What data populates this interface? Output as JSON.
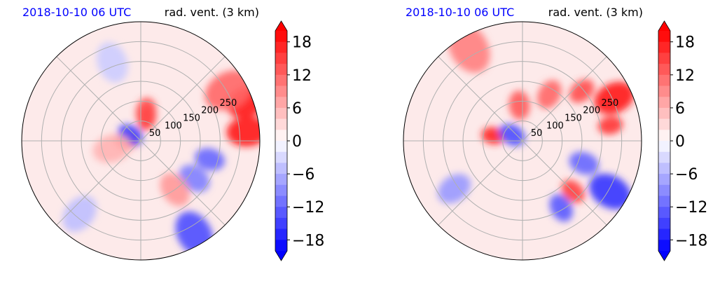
{
  "chart_data": [
    {
      "type": "heatmap",
      "title_left": "2018-10-10 06 UTC",
      "title_right": "rad. vent. (3 km)",
      "ring_labels": [
        "50",
        "100",
        "150",
        "200",
        "250"
      ],
      "colorbar": {
        "vmin": -20,
        "vmax": 20,
        "ticks": [
          18,
          12,
          6,
          0,
          -6,
          -12,
          -18
        ],
        "tick_labels": [
          "18",
          "12",
          "6",
          "0",
          "−6",
          "−12",
          "−18"
        ],
        "extend": "both",
        "cmap": "bwr"
      },
      "colors": {
        "positive": "#ff0000",
        "negative": "#0000ff",
        "grid": "#b0b0b0"
      },
      "field_features": [
        {
          "angle": 75,
          "r": 0.2,
          "v": 16
        },
        {
          "angle": 80,
          "r": 0.25,
          "v": 14
        },
        {
          "angle": 180,
          "r": 0.12,
          "v": 17
        },
        {
          "angle": 150,
          "r": 0.1,
          "v": -15
        },
        {
          "angle": 20,
          "r": 0.95,
          "v": 18
        },
        {
          "angle": 5,
          "r": 0.9,
          "v": 18
        },
        {
          "angle": 30,
          "r": 0.85,
          "v": 12
        },
        {
          "angle": -15,
          "r": 0.6,
          "v": -12
        },
        {
          "angle": -35,
          "r": 0.55,
          "v": -10
        },
        {
          "angle": -55,
          "r": 0.5,
          "v": 8
        },
        {
          "angle": -60,
          "r": 0.9,
          "v": -14
        },
        {
          "angle": 195,
          "r": 0.25,
          "v": 6
        },
        {
          "angle": 110,
          "r": 0.7,
          "v": -4
        },
        {
          "angle": 230,
          "r": 0.8,
          "v": -5
        }
      ]
    },
    {
      "type": "heatmap",
      "title_left": "2018-10-10 06 UTC",
      "title_right": "rad. vent. (3 km)",
      "ring_labels": [
        "50",
        "100",
        "150",
        "200",
        "250"
      ],
      "colorbar": {
        "vmin": -20,
        "vmax": 20,
        "ticks": [
          18,
          12,
          6,
          0,
          -6,
          -12,
          -18
        ],
        "tick_labels": [
          "18",
          "12",
          "6",
          "0",
          "−6",
          "−12",
          "−18"
        ],
        "extend": "both",
        "cmap": "bwr"
      },
      "colors": {
        "positive": "#ff0000",
        "negative": "#0000ff",
        "grid": "#b0b0b0"
      },
      "field_features": [
        {
          "angle": 170,
          "r": 0.25,
          "v": 17
        },
        {
          "angle": 150,
          "r": 0.1,
          "v": -14
        },
        {
          "angle": 95,
          "r": 0.3,
          "v": 13
        },
        {
          "angle": 60,
          "r": 0.45,
          "v": 12
        },
        {
          "angle": 40,
          "r": 0.65,
          "v": 14
        },
        {
          "angle": 25,
          "r": 0.85,
          "v": 18
        },
        {
          "angle": 10,
          "r": 0.75,
          "v": 16
        },
        {
          "angle": -20,
          "r": 0.55,
          "v": -12
        },
        {
          "angle": -45,
          "r": 0.6,
          "v": 15
        },
        {
          "angle": -60,
          "r": 0.65,
          "v": -13
        },
        {
          "angle": -30,
          "r": 0.85,
          "v": -16
        },
        {
          "angle": 120,
          "r": 0.9,
          "v": 10
        },
        {
          "angle": 215,
          "r": 0.7,
          "v": -8
        }
      ]
    }
  ]
}
